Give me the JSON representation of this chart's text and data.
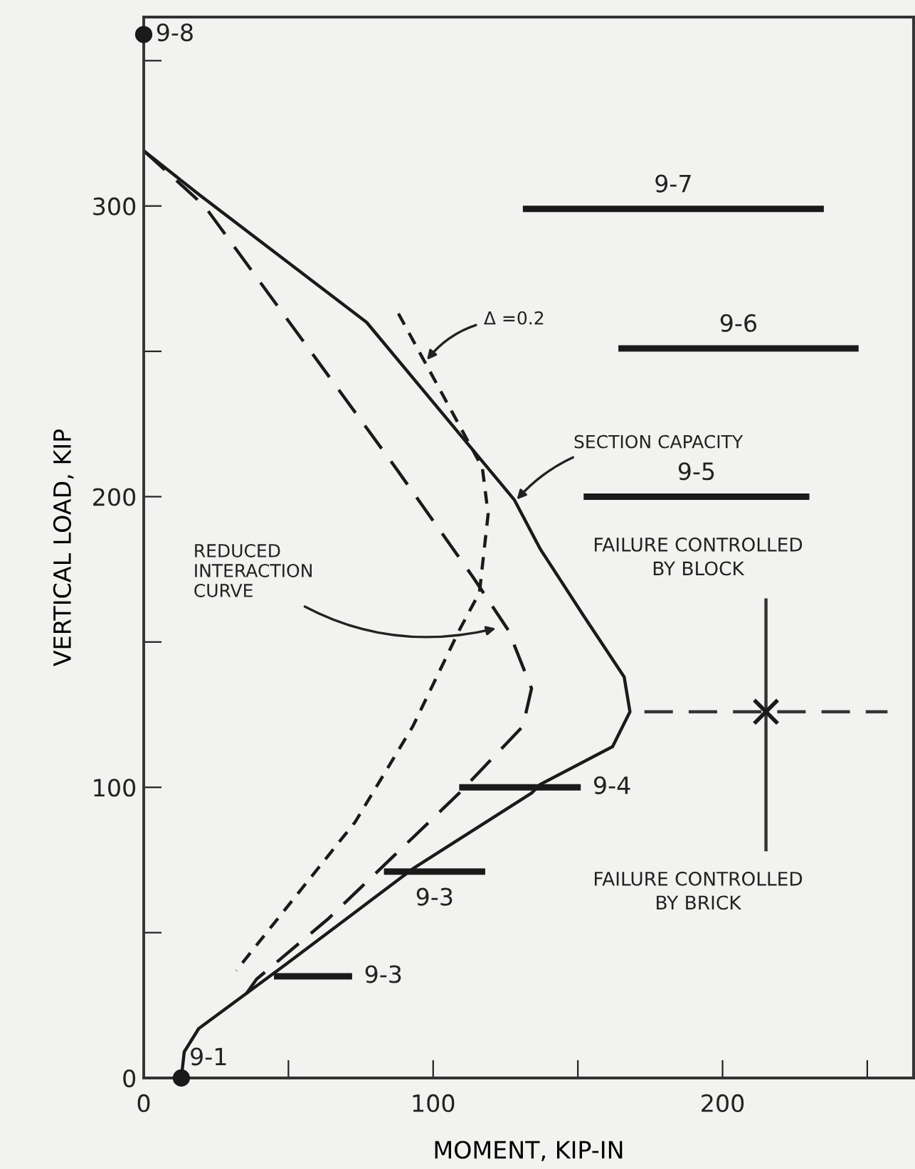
{
  "chart_data": {
    "type": "line",
    "xlabel": "MOMENT, KIP-IN",
    "ylabel": "VERTICAL LOAD, KIP",
    "xlim": [
      0,
      266
    ],
    "ylim": [
      0,
      365
    ],
    "xticks": [
      0,
      {
        "value": 50,
        "label": null
      },
      100,
      {
        "value": 150,
        "label": null
      },
      200,
      {
        "value": 250,
        "label": null
      }
    ],
    "yticks": [
      0,
      {
        "value": 50,
        "label": null
      },
      100,
      {
        "value": 150,
        "label": null
      },
      200,
      {
        "value": 250,
        "label": null
      },
      300,
      {
        "value": 350,
        "label": null
      }
    ],
    "grid": false,
    "series": [
      {
        "line_style": "solid",
        "color": "#1a1a1a",
        "x": [
          0,
          19,
          77,
          128,
          137,
          152,
          166,
          168,
          162,
          137,
          134,
          93,
          49,
          19,
          14,
          13
        ],
        "values": [
          319,
          304,
          260,
          199,
          182,
          159,
          138,
          126,
          114,
          101,
          98,
          72,
          39,
          17,
          9,
          0
        ]
      },
      {
        "line_style": "dashed",
        "color": "#1a1a1a",
        "x": [
          0,
          21,
          87,
          114,
          126,
          134,
          131,
          109,
          64,
          39,
          34
        ],
        "values": [
          319,
          300,
          210,
          172,
          154,
          134,
          121,
          98,
          55,
          34,
          27
        ]
      },
      {
        "line_style": "dotted",
        "color": "#1a1a1a",
        "x": [
          88,
          117,
          119,
          116,
          109,
          93,
          73,
          32
        ],
        "values": [
          263,
          210,
          194,
          167,
          154,
          121,
          88,
          37
        ]
      },
      {
        "type": "line",
        "name": "9-7",
        "line_style": "solid",
        "color": "#1a1a1a",
        "x": [
          131,
          235
        ],
        "values": [
          299,
          299
        ]
      },
      {
        "type": "line",
        "name": "9-6",
        "line_style": "solid",
        "color": "#1a1a1a",
        "x": [
          164,
          247
        ],
        "values": [
          251,
          251
        ]
      },
      {
        "type": "line",
        "name": "9-5",
        "line_style": "solid",
        "color": "#1a1a1a",
        "x": [
          152,
          230
        ],
        "values": [
          200,
          200
        ]
      },
      {
        "type": "line",
        "name": "9-4",
        "line_style": "solid",
        "color": "#1a1a1a",
        "x": [
          109,
          151
        ],
        "values": [
          100,
          100
        ]
      },
      {
        "type": "line",
        "name": "9-3",
        "line_style": "solid",
        "color": "#1a1a1a",
        "x": [
          83,
          118
        ],
        "values": [
          71,
          71
        ]
      },
      {
        "type": "line",
        "name": "9-3",
        "line_style": "solid",
        "color": "#1a1a1a",
        "x": [
          45,
          72
        ],
        "values": [
          35,
          35
        ]
      },
      {
        "type": "scatter",
        "name": "9-8",
        "marker": "circle",
        "color": "#1a1a1a",
        "x": [
          0
        ],
        "values": [
          359
        ]
      },
      {
        "type": "scatter",
        "name": "9-1",
        "marker": "circle",
        "color": "#1a1a1a",
        "x": [
          13
        ],
        "values": [
          0
        ]
      },
      {
        "type": "line",
        "line_style": "dashed",
        "color": "#333333",
        "x": [
          173,
          257
        ],
        "values": [
          126,
          126
        ]
      },
      {
        "type": "line",
        "line_style": "solid",
        "color": "#333333",
        "x": [
          215,
          215
        ],
        "values": [
          165,
          78
        ]
      },
      {
        "type": "scatter",
        "marker": "cross",
        "color": "#1a1a1a",
        "x": [
          215
        ],
        "values": [
          126
        ]
      }
    ],
    "annotations": [
      {
        "text": "Δ =0.2",
        "x": 97,
        "y": 246
      },
      {
        "text": "SECTION CAPACITY",
        "x": 128,
        "y": 198
      },
      {
        "text": "REDUCED\nINTERACTION\nCURVE",
        "x": 123,
        "y": 155
      },
      "FAILURE CONTROLLED\nBY BLOCK",
      "FAILURE CONTROLLED\nBY BRICK"
    ]
  }
}
